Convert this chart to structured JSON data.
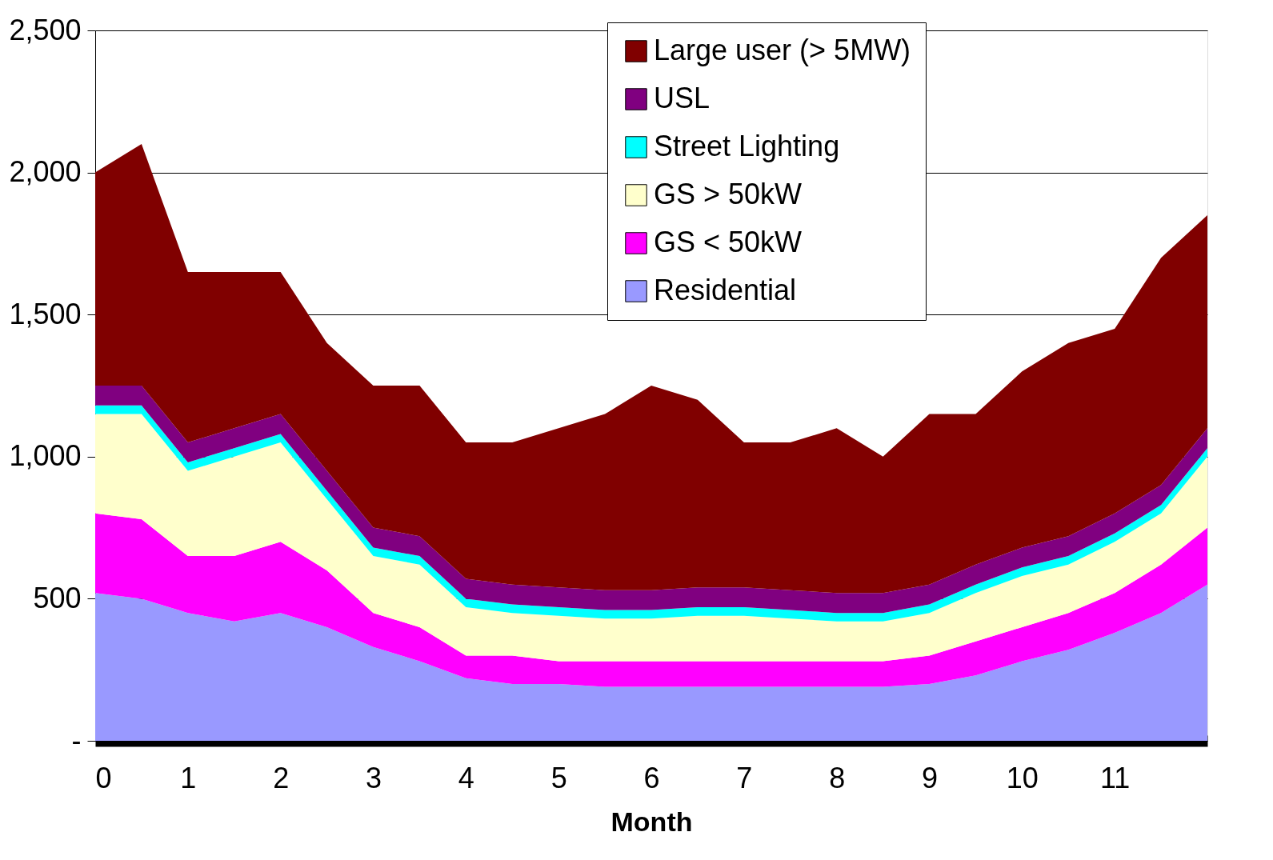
{
  "chart_data": {
    "type": "area",
    "stacked": true,
    "xlabel": "Month",
    "x": [
      0,
      0.5,
      1,
      1.5,
      2,
      2.5,
      3,
      3.5,
      4,
      4.5,
      5,
      5.5,
      6,
      6.5,
      7,
      7.5,
      8,
      8.5,
      9,
      9.5,
      10,
      10.5,
      11,
      11.5,
      12
    ],
    "series": [
      {
        "name": "Residential",
        "color": "#9999ff",
        "values": [
          520,
          500,
          450,
          420,
          450,
          400,
          330,
          280,
          220,
          200,
          200,
          190,
          190,
          190,
          190,
          190,
          190,
          190,
          200,
          230,
          280,
          320,
          380,
          450,
          550
        ]
      },
      {
        "name": "GS < 50kW",
        "color": "#ff00ff",
        "values": [
          280,
          280,
          200,
          230,
          250,
          200,
          120,
          120,
          80,
          100,
          80,
          90,
          90,
          90,
          90,
          90,
          90,
          90,
          100,
          120,
          120,
          130,
          140,
          170,
          200
        ]
      },
      {
        "name": "GS > 50kW",
        "color": "#ffffcc",
        "values": [
          350,
          370,
          300,
          350,
          350,
          250,
          200,
          220,
          170,
          150,
          160,
          150,
          150,
          160,
          160,
          150,
          140,
          140,
          150,
          170,
          180,
          170,
          180,
          180,
          250
        ]
      },
      {
        "name": "Street Lighting",
        "color": "#00ffff",
        "values": [
          30,
          30,
          30,
          30,
          30,
          30,
          30,
          30,
          30,
          30,
          30,
          30,
          30,
          30,
          30,
          30,
          30,
          30,
          30,
          30,
          30,
          30,
          30,
          30,
          30
        ]
      },
      {
        "name": "USL",
        "color": "#800080",
        "values": [
          70,
          70,
          70,
          70,
          70,
          70,
          70,
          70,
          70,
          70,
          70,
          70,
          70,
          70,
          70,
          70,
          70,
          70,
          70,
          70,
          70,
          70,
          70,
          70,
          70
        ]
      },
      {
        "name": "Large user (> 5MW)",
        "color": "#800000",
        "values": [
          750,
          850,
          600,
          550,
          500,
          450,
          500,
          530,
          480,
          500,
          560,
          620,
          720,
          660,
          510,
          520,
          580,
          480,
          600,
          530,
          620,
          680,
          650,
          800,
          750
        ]
      }
    ],
    "xlim": [
      0,
      12
    ],
    "xticks": [
      0,
      1,
      2,
      3,
      4,
      5,
      6,
      7,
      8,
      9,
      10,
      11
    ],
    "ylim": [
      0,
      2500
    ],
    "yticks": [
      {
        "value": 0,
        "label": "-"
      },
      {
        "value": 500,
        "label": "500"
      },
      {
        "value": 1000,
        "label": "1,000"
      },
      {
        "value": 1500,
        "label": "1,500"
      },
      {
        "value": 2000,
        "label": "2,000"
      },
      {
        "value": 2500,
        "label": "2,500"
      }
    ],
    "grid": "y",
    "legend": "top"
  }
}
